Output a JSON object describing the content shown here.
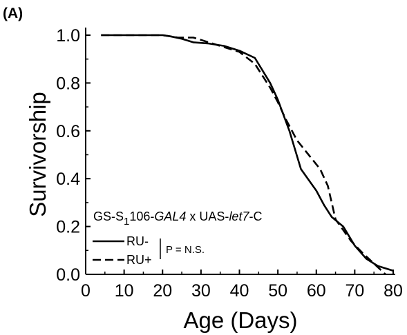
{
  "panel_label": "(A)",
  "chart_data": {
    "type": "line",
    "title": "",
    "xlabel": "Age (Days)",
    "ylabel": "Survivorship",
    "xlim": [
      0,
      80
    ],
    "ylim": [
      0.0,
      1.0
    ],
    "xticks": [
      0,
      10,
      20,
      30,
      40,
      50,
      60,
      70,
      80
    ],
    "xtick_labels": [
      "0",
      "10",
      "20",
      "30",
      "40",
      "50",
      "60",
      "70",
      "80"
    ],
    "yticks": [
      0.0,
      0.2,
      0.4,
      0.6,
      0.8,
      1.0
    ],
    "ytick_labels": [
      "0.0",
      "0.2",
      "0.4",
      "0.6",
      "0.8",
      "1.0"
    ],
    "grid": false,
    "legend_placement": "bottom-left",
    "annotation": {
      "part1": "GS-S",
      "sub": "1",
      "part2": "106-",
      "part3": "GAL4",
      "part4": " x UAS-",
      "part5": "let7",
      "part6": "-C",
      "pvalue": "P = N.S."
    },
    "series": [
      {
        "name": "RU-",
        "style": "solid",
        "x": [
          4,
          20,
          22,
          25,
          28,
          32,
          36,
          40,
          44,
          48,
          50,
          53,
          56,
          60,
          62,
          64,
          67,
          70,
          73,
          76,
          80
        ],
        "y": [
          1.0,
          1.0,
          0.995,
          0.985,
          0.97,
          0.965,
          0.955,
          0.935,
          0.905,
          0.8,
          0.73,
          0.6,
          0.44,
          0.35,
          0.29,
          0.24,
          0.2,
          0.12,
          0.065,
          0.035,
          0.015
        ]
      },
      {
        "name": "RU+",
        "style": "dashed",
        "x": [
          4,
          20,
          24,
          28,
          32,
          36,
          40,
          44,
          48,
          50,
          52,
          55,
          58,
          61,
          63,
          65,
          67,
          69,
          72,
          75,
          78
        ],
        "y": [
          1.0,
          1.0,
          0.99,
          0.99,
          0.97,
          0.95,
          0.93,
          0.88,
          0.78,
          0.72,
          0.65,
          0.56,
          0.5,
          0.44,
          0.37,
          0.23,
          0.185,
          0.14,
          0.09,
          0.045,
          0.0
        ]
      }
    ]
  }
}
